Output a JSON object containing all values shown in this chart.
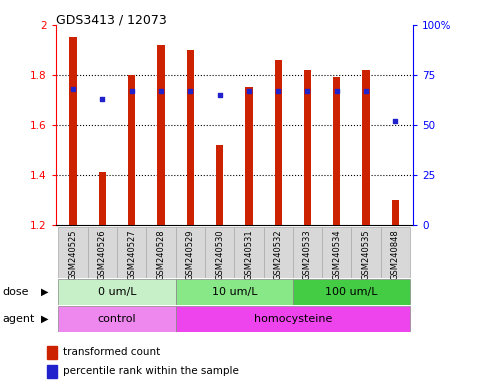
{
  "title": "GDS3413 / 12073",
  "samples": [
    "GSM240525",
    "GSM240526",
    "GSM240527",
    "GSM240528",
    "GSM240529",
    "GSM240530",
    "GSM240531",
    "GSM240532",
    "GSM240533",
    "GSM240534",
    "GSM240535",
    "GSM240848"
  ],
  "bar_values": [
    1.95,
    1.41,
    1.8,
    1.92,
    1.9,
    1.52,
    1.75,
    1.86,
    1.82,
    1.79,
    1.82,
    1.3
  ],
  "bar_bottom": 1.2,
  "dot_values": [
    68,
    63,
    67,
    67,
    67,
    65,
    67,
    67,
    67,
    67,
    67,
    52
  ],
  "ylim_left": [
    1.2,
    2.0
  ],
  "ylim_right": [
    0,
    100
  ],
  "yticks_left": [
    1.2,
    1.4,
    1.6,
    1.8,
    2.0
  ],
  "ytick_labels_left": [
    "1.2",
    "1.4",
    "1.6",
    "1.8",
    "2"
  ],
  "yticks_right": [
    0,
    25,
    50,
    75,
    100
  ],
  "ytick_labels_right": [
    "0",
    "25",
    "50",
    "75",
    "100%"
  ],
  "bar_color": "#cc2200",
  "dot_color": "#2222cc",
  "dose_colors": [
    "#c8f0c8",
    "#88e888",
    "#44cc44"
  ],
  "agent_colors": [
    "#ee88ee",
    "#ee44ee"
  ],
  "dose_groups": [
    {
      "label": "0 um/L",
      "start": 0,
      "end": 3
    },
    {
      "label": "10 um/L",
      "start": 4,
      "end": 7
    },
    {
      "label": "100 um/L",
      "start": 8,
      "end": 11
    }
  ],
  "agent_groups": [
    {
      "label": "control",
      "start": 0,
      "end": 3
    },
    {
      "label": "homocysteine",
      "start": 4,
      "end": 11
    }
  ],
  "legend_bar_label": "transformed count",
  "legend_dot_label": "percentile rank within the sample",
  "dose_label": "dose",
  "agent_label": "agent",
  "background_color": "#ffffff",
  "plot_bg_color": "#ffffff",
  "label_bg_color": "#d8d8d8"
}
